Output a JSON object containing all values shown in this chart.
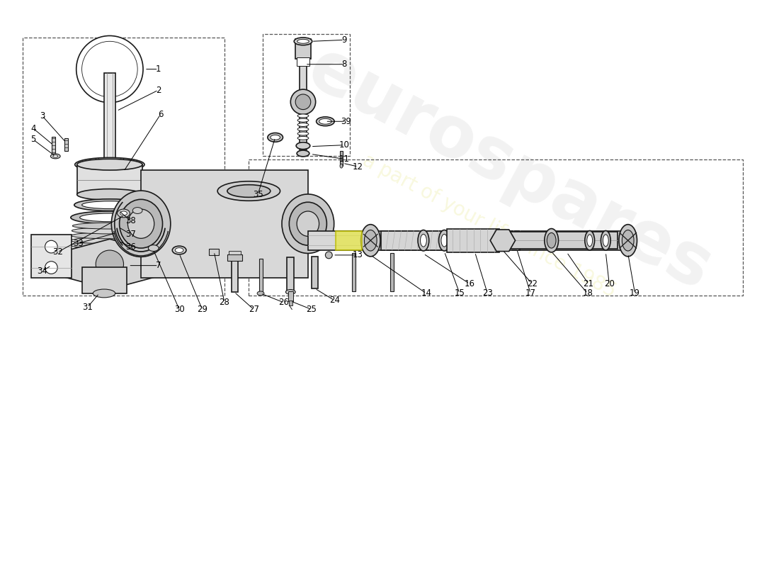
{
  "bg_color": "#ffffff",
  "line_color": "#1a1a1a",
  "watermark_text1": "eurospares",
  "watermark_text2": "a part of your life since 1985"
}
